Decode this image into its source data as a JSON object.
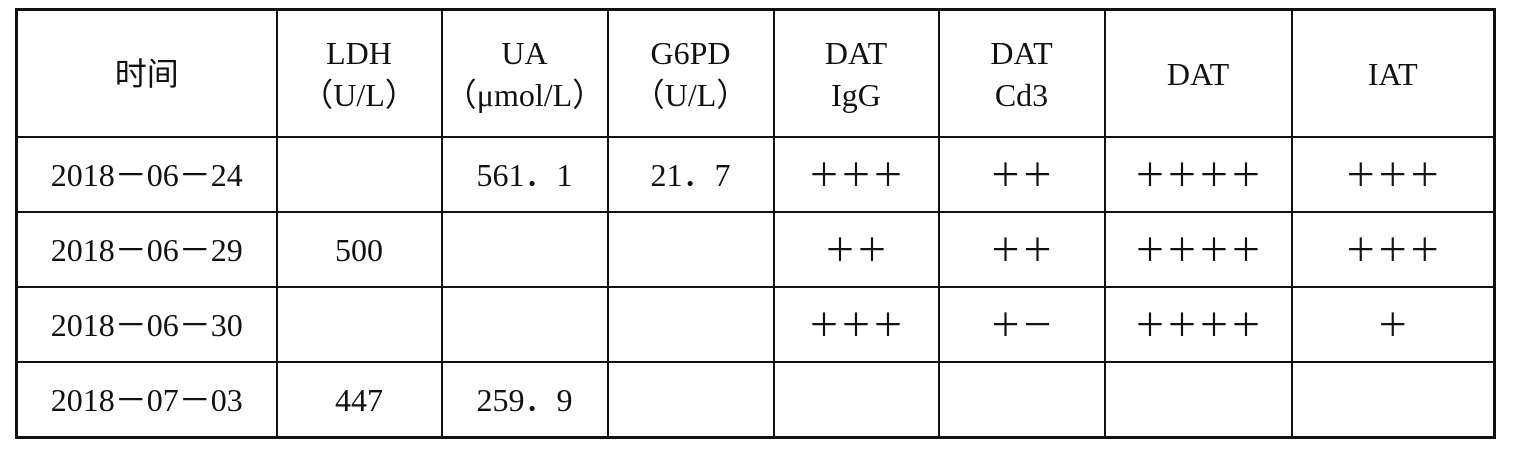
{
  "table": {
    "header": [
      [
        "时间"
      ],
      [
        "LDH",
        "（U/L）"
      ],
      [
        "UA",
        "（μmol/L）"
      ],
      [
        "G6PD",
        "（U/L）"
      ],
      [
        "DAT",
        "IgG"
      ],
      [
        "DAT",
        "Cd3"
      ],
      [
        "DAT"
      ],
      [
        "IAT"
      ]
    ],
    "rows": [
      [
        "2018－06－24",
        null,
        "561．1",
        "21．7",
        "＋＋＋",
        "＋＋",
        "＋＋＋＋",
        "＋＋＋"
      ],
      [
        "2018－06－29",
        "500",
        null,
        null,
        "＋＋",
        "＋＋",
        "＋＋＋＋",
        "＋＋＋"
      ],
      [
        "2018－06－30",
        null,
        null,
        null,
        "＋＋＋",
        "＋－",
        "＋＋＋＋",
        "＋"
      ],
      [
        "2018－07－03",
        "447",
        "259．9",
        null,
        null,
        null,
        null,
        null
      ]
    ]
  }
}
